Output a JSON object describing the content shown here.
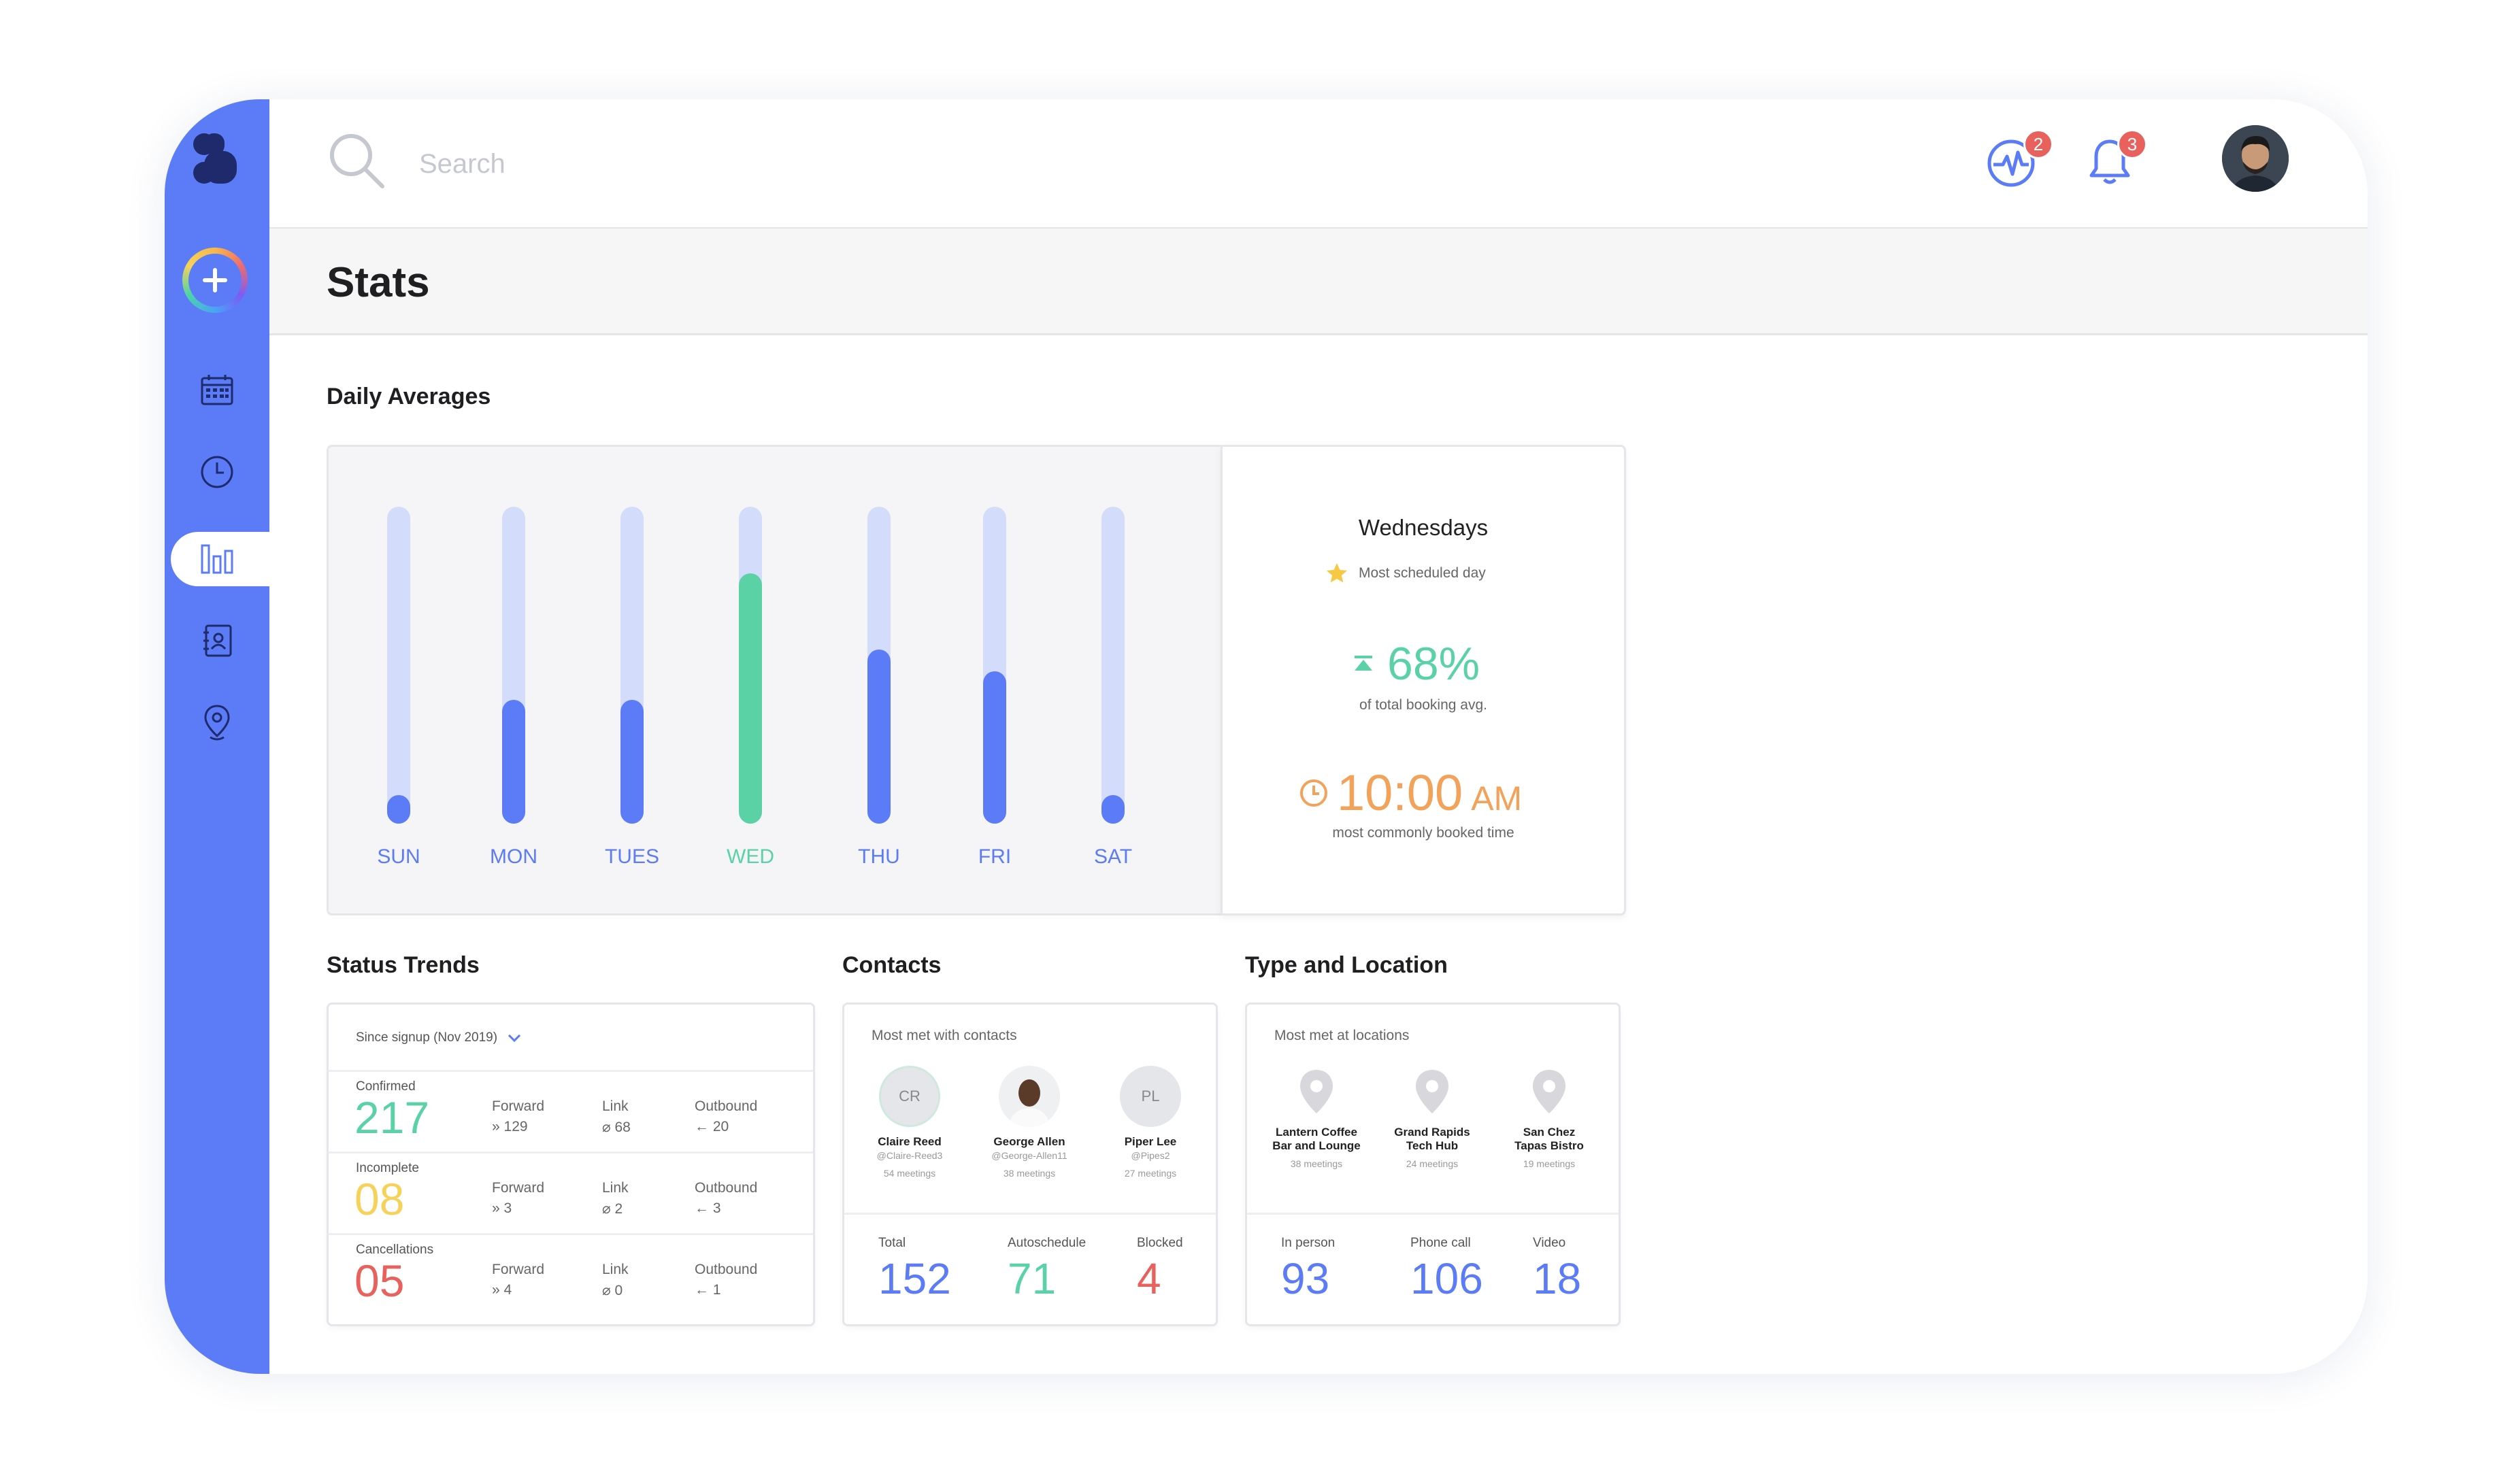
{
  "search": {
    "placeholder": "Search"
  },
  "header": {
    "activity_badge": "2",
    "notifications_badge": "3"
  },
  "page": {
    "title": "Stats"
  },
  "colors": {
    "sidebar": "#5b7cf6",
    "accent_blue": "#5b7cf6",
    "accent_green": "#5bd1a6",
    "accent_yellow": "#f7d25b",
    "accent_red": "#e8615d",
    "accent_orange": "#f2a259",
    "track": "#d4dcfb"
  },
  "daily_averages": {
    "title": "Daily Averages",
    "chart_data": {
      "type": "bar",
      "categories": [
        "SUN",
        "MON",
        "TUES",
        "WED",
        "THU",
        "FRI",
        "SAT"
      ],
      "values": [
        0.09,
        0.39,
        0.39,
        0.79,
        0.55,
        0.48,
        0.09
      ],
      "ylim": [
        0,
        1
      ],
      "highlight": "WED"
    },
    "summary": {
      "day": "Wednesdays",
      "day_note": "Most scheduled day",
      "percent": "68%",
      "percent_note": "of total booking avg.",
      "time": "10:00",
      "time_suffix": "AM",
      "time_note": "most commonly booked time"
    }
  },
  "status_trends": {
    "title": "Status Trends",
    "filter": "Since signup (Nov 2019)",
    "rows": [
      {
        "label": "Confirmed",
        "value": "217",
        "forward_label": "Forward",
        "forward": "129",
        "link_label": "Link",
        "link": "68",
        "outbound_label": "Outbound",
        "outbound": "20",
        "color": "#5bd1a6"
      },
      {
        "label": "Incomplete",
        "value": "08",
        "forward_label": "Forward",
        "forward": "3",
        "link_label": "Link",
        "link": "2",
        "outbound_label": "Outbound",
        "outbound": "3",
        "color": "#f7d25b"
      },
      {
        "label": "Cancellations",
        "value": "05",
        "forward_label": "Forward",
        "forward": "4",
        "link_label": "Link",
        "link": "0",
        "outbound_label": "Outbound",
        "outbound": "1",
        "color": "#e8615d"
      }
    ]
  },
  "contacts": {
    "title": "Contacts",
    "subtitle": "Most met with contacts",
    "people": [
      {
        "initials": "CR",
        "name": "Claire Reed",
        "handle": "@Claire-Reed3",
        "meetings": "54 meetings"
      },
      {
        "initials": "",
        "name": "George Allen",
        "handle": "@George-Allen11",
        "meetings": "38 meetings"
      },
      {
        "initials": "PL",
        "name": "Piper Lee",
        "handle": "@Pipes2",
        "meetings": "27 meetings"
      }
    ],
    "stats": [
      {
        "label": "Total",
        "value": "152",
        "color": "#5b7cf6"
      },
      {
        "label": "Autoschedule",
        "value": "71",
        "color": "#5bd1a6"
      },
      {
        "label": "Blocked",
        "value": "4",
        "color": "#e8615d"
      }
    ]
  },
  "type_location": {
    "title": "Type and Location",
    "subtitle": "Most met at locations",
    "locations": [
      {
        "name_line1": "Lantern Coffee",
        "name_line2": "Bar and Lounge",
        "meetings": "38 meetings"
      },
      {
        "name_line1": "Grand Rapids",
        "name_line2": "Tech Hub",
        "meetings": "24 meetings"
      },
      {
        "name_line1": "San Chez",
        "name_line2": "Tapas Bistro",
        "meetings": "19 meetings"
      }
    ],
    "stats": [
      {
        "label": "In person",
        "value": "93"
      },
      {
        "label": "Phone call",
        "value": "106"
      },
      {
        "label": "Video",
        "value": "18"
      }
    ]
  }
}
